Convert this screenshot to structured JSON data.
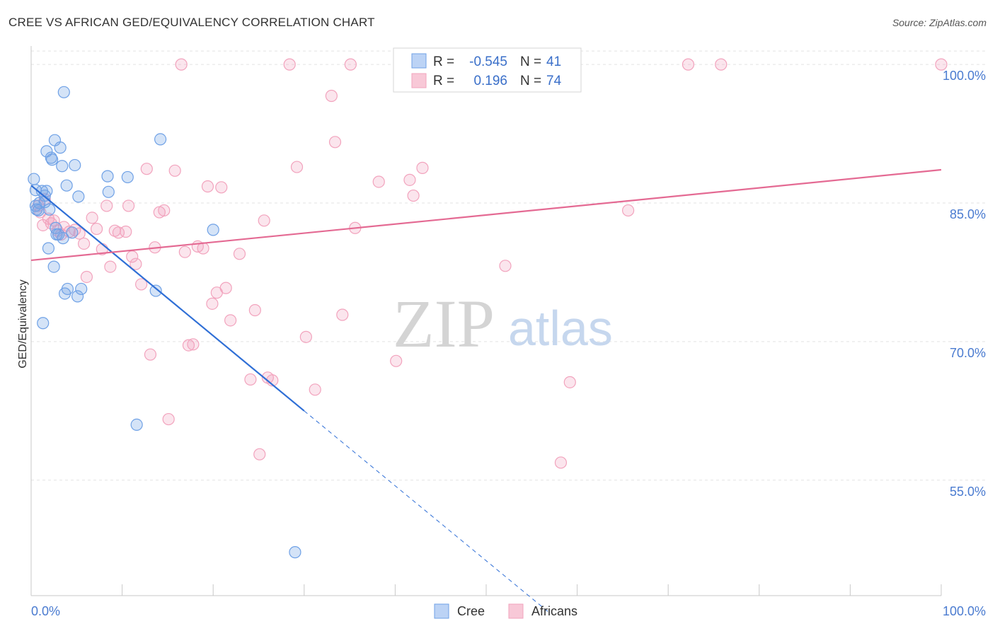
{
  "header": {
    "title": "CREE VS AFRICAN GED/EQUIVALENCY CORRELATION CHART",
    "source": "Source: ZipAtlas.com"
  },
  "watermark": {
    "zip": "ZIP",
    "atlas": "atlas"
  },
  "legend_box": {
    "rows": [
      {
        "r_label": "R =",
        "r_value": "-0.545",
        "n_label": "N =",
        "n_value": "41"
      },
      {
        "r_label": "R =",
        "r_value": "0.196",
        "n_label": "N =",
        "n_value": "74"
      }
    ]
  },
  "bottom_legend": {
    "cree": "Cree",
    "africans": "Africans"
  },
  "chart_data": {
    "type": "scatter",
    "xlabel": "",
    "ylabel": "GED/Equivalency",
    "xlim": [
      0,
      100
    ],
    "ylim": [
      42.5,
      102
    ],
    "x_tick_labels": [
      "0.0%",
      "100.0%"
    ],
    "y_ticks": [
      55,
      70,
      85,
      100
    ],
    "y_tick_labels": [
      "55.0%",
      "70.0%",
      "85.0%",
      "100.0%"
    ],
    "grid": true,
    "legend_position": "bottom",
    "colors": {
      "cree": "#6fa1e6",
      "africans": "#f2a3bd",
      "cree_line": "#2f6fd6",
      "africans_line": "#e46a93",
      "tick_text": "#4a7bd0"
    },
    "series": [
      {
        "name": "Cree",
        "color": "#6fa1e6",
        "points": [
          [
            0.3,
            87.6
          ],
          [
            0.5,
            86.4
          ],
          [
            0.5,
            84.7
          ],
          [
            0.8,
            84.2
          ],
          [
            0.9,
            85.0
          ],
          [
            1.2,
            86.3
          ],
          [
            1.3,
            72.0
          ],
          [
            1.5,
            85.1
          ],
          [
            1.5,
            85.8
          ],
          [
            1.7,
            86.3
          ],
          [
            1.7,
            90.6
          ],
          [
            1.9,
            80.1
          ],
          [
            2.0,
            84.3
          ],
          [
            2.2,
            89.9
          ],
          [
            2.3,
            89.7
          ],
          [
            2.5,
            78.1
          ],
          [
            2.6,
            91.8
          ],
          [
            2.7,
            82.3
          ],
          [
            2.8,
            81.6
          ],
          [
            3.0,
            81.6
          ],
          [
            3.2,
            91.0
          ],
          [
            3.4,
            89.0
          ],
          [
            3.5,
            81.2
          ],
          [
            3.6,
            97.0
          ],
          [
            3.7,
            75.2
          ],
          [
            3.9,
            86.9
          ],
          [
            4.0,
            75.7
          ],
          [
            4.5,
            81.8
          ],
          [
            4.8,
            89.1
          ],
          [
            5.1,
            74.9
          ],
          [
            5.2,
            85.7
          ],
          [
            5.5,
            75.7
          ],
          [
            8.4,
            87.9
          ],
          [
            8.5,
            86.2
          ],
          [
            10.6,
            87.8
          ],
          [
            11.6,
            61.0
          ],
          [
            13.7,
            75.5
          ],
          [
            14.2,
            91.9
          ],
          [
            20.0,
            82.1
          ],
          [
            29.0,
            47.2
          ],
          [
            0.6,
            84.3
          ]
        ],
        "trend": {
          "x0": 0,
          "y0": 86.9,
          "x1": 30,
          "y1": 62.5,
          "dashed_to_x": 57,
          "dashed_to_y": 40.6
        }
      },
      {
        "name": "Africans",
        "color": "#f2a3bd",
        "points": [
          [
            0.8,
            84.7
          ],
          [
            1.3,
            82.6
          ],
          [
            1.5,
            85.4
          ],
          [
            1.9,
            83.3
          ],
          [
            2.2,
            82.8
          ],
          [
            2.5,
            83.1
          ],
          [
            2.9,
            82.0
          ],
          [
            3.3,
            81.6
          ],
          [
            3.6,
            82.4
          ],
          [
            4.2,
            81.9
          ],
          [
            4.8,
            82.1
          ],
          [
            5.3,
            81.7
          ],
          [
            5.8,
            80.6
          ],
          [
            6.1,
            77.0
          ],
          [
            6.7,
            83.4
          ],
          [
            7.2,
            82.2
          ],
          [
            7.8,
            80.0
          ],
          [
            8.3,
            84.7
          ],
          [
            8.7,
            78.1
          ],
          [
            9.2,
            82.0
          ],
          [
            9.6,
            81.8
          ],
          [
            10.4,
            81.9
          ],
          [
            10.7,
            84.7
          ],
          [
            11.1,
            79.2
          ],
          [
            11.5,
            78.4
          ],
          [
            12.1,
            76.2
          ],
          [
            12.7,
            88.7
          ],
          [
            13.1,
            68.6
          ],
          [
            13.6,
            80.2
          ],
          [
            14.1,
            84.0
          ],
          [
            14.6,
            84.2
          ],
          [
            15.1,
            61.6
          ],
          [
            15.8,
            88.5
          ],
          [
            16.5,
            100.0
          ],
          [
            16.9,
            79.7
          ],
          [
            17.3,
            69.6
          ],
          [
            17.8,
            69.7
          ],
          [
            18.3,
            80.3
          ],
          [
            18.9,
            80.1
          ],
          [
            19.4,
            86.8
          ],
          [
            19.9,
            74.1
          ],
          [
            20.4,
            75.3
          ],
          [
            20.9,
            86.7
          ],
          [
            21.4,
            75.8
          ],
          [
            21.9,
            72.3
          ],
          [
            22.9,
            79.5
          ],
          [
            24.1,
            65.9
          ],
          [
            24.6,
            73.4
          ],
          [
            25.1,
            57.8
          ],
          [
            25.6,
            83.1
          ],
          [
            26.0,
            66.1
          ],
          [
            26.5,
            65.8
          ],
          [
            28.4,
            100.0
          ],
          [
            29.2,
            88.9
          ],
          [
            30.2,
            70.5
          ],
          [
            31.2,
            64.8
          ],
          [
            33.0,
            96.6
          ],
          [
            33.4,
            91.6
          ],
          [
            34.2,
            72.9
          ],
          [
            35.1,
            100.0
          ],
          [
            35.6,
            82.3
          ],
          [
            38.2,
            87.3
          ],
          [
            40.1,
            67.9
          ],
          [
            41.6,
            87.5
          ],
          [
            42.0,
            85.8
          ],
          [
            43.0,
            88.8
          ],
          [
            52.1,
            78.2
          ],
          [
            58.2,
            56.9
          ],
          [
            59.2,
            65.6
          ],
          [
            65.6,
            84.2
          ],
          [
            72.2,
            100.0
          ],
          [
            75.8,
            100.0
          ],
          [
            100.0,
            100.0
          ],
          [
            1.0,
            84.0
          ]
        ],
        "trend": {
          "x0": 0,
          "y0": 78.8,
          "x1": 100,
          "y1": 88.6
        }
      }
    ]
  }
}
